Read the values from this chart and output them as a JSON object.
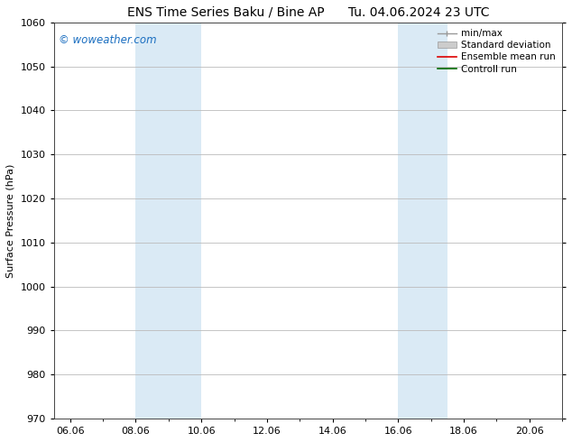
{
  "title_left": "ENS Time Series Baku / Bine AP",
  "title_right": "Tu. 04.06.2024 23 UTC",
  "ylabel": "Surface Pressure (hPa)",
  "ylim": [
    970,
    1060
  ],
  "yticks": [
    970,
    980,
    990,
    1000,
    1010,
    1020,
    1030,
    1040,
    1050,
    1060
  ],
  "xlim_start": 5.5,
  "xlim_end": 21.0,
  "xtick_labels": [
    "06.06",
    "08.06",
    "10.06",
    "12.06",
    "14.06",
    "16.06",
    "18.06",
    "20.06"
  ],
  "xtick_positions": [
    6,
    8,
    10,
    12,
    14,
    16,
    18,
    20
  ],
  "shaded_bands": [
    {
      "x_start": 8.0,
      "x_end": 10.0
    },
    {
      "x_start": 16.0,
      "x_end": 17.5
    }
  ],
  "shaded_color": "#daeaf5",
  "watermark_text": "© woweather.com",
  "watermark_color": "#1a6ec0",
  "legend_entries": [
    {
      "label": "min/max",
      "color": "#999999",
      "lw": 1.0
    },
    {
      "label": "Standard deviation",
      "color": "#cccccc",
      "lw": 5
    },
    {
      "label": "Ensemble mean run",
      "color": "#dd0000",
      "lw": 1.2
    },
    {
      "label": "Controll run",
      "color": "#006600",
      "lw": 1.2
    }
  ],
  "bg_color": "#ffffff",
  "grid_color": "#bbbbbb",
  "title_fontsize": 10,
  "axis_fontsize": 8,
  "tick_fontsize": 8,
  "legend_fontsize": 7.5,
  "watermark_fontsize": 8.5
}
